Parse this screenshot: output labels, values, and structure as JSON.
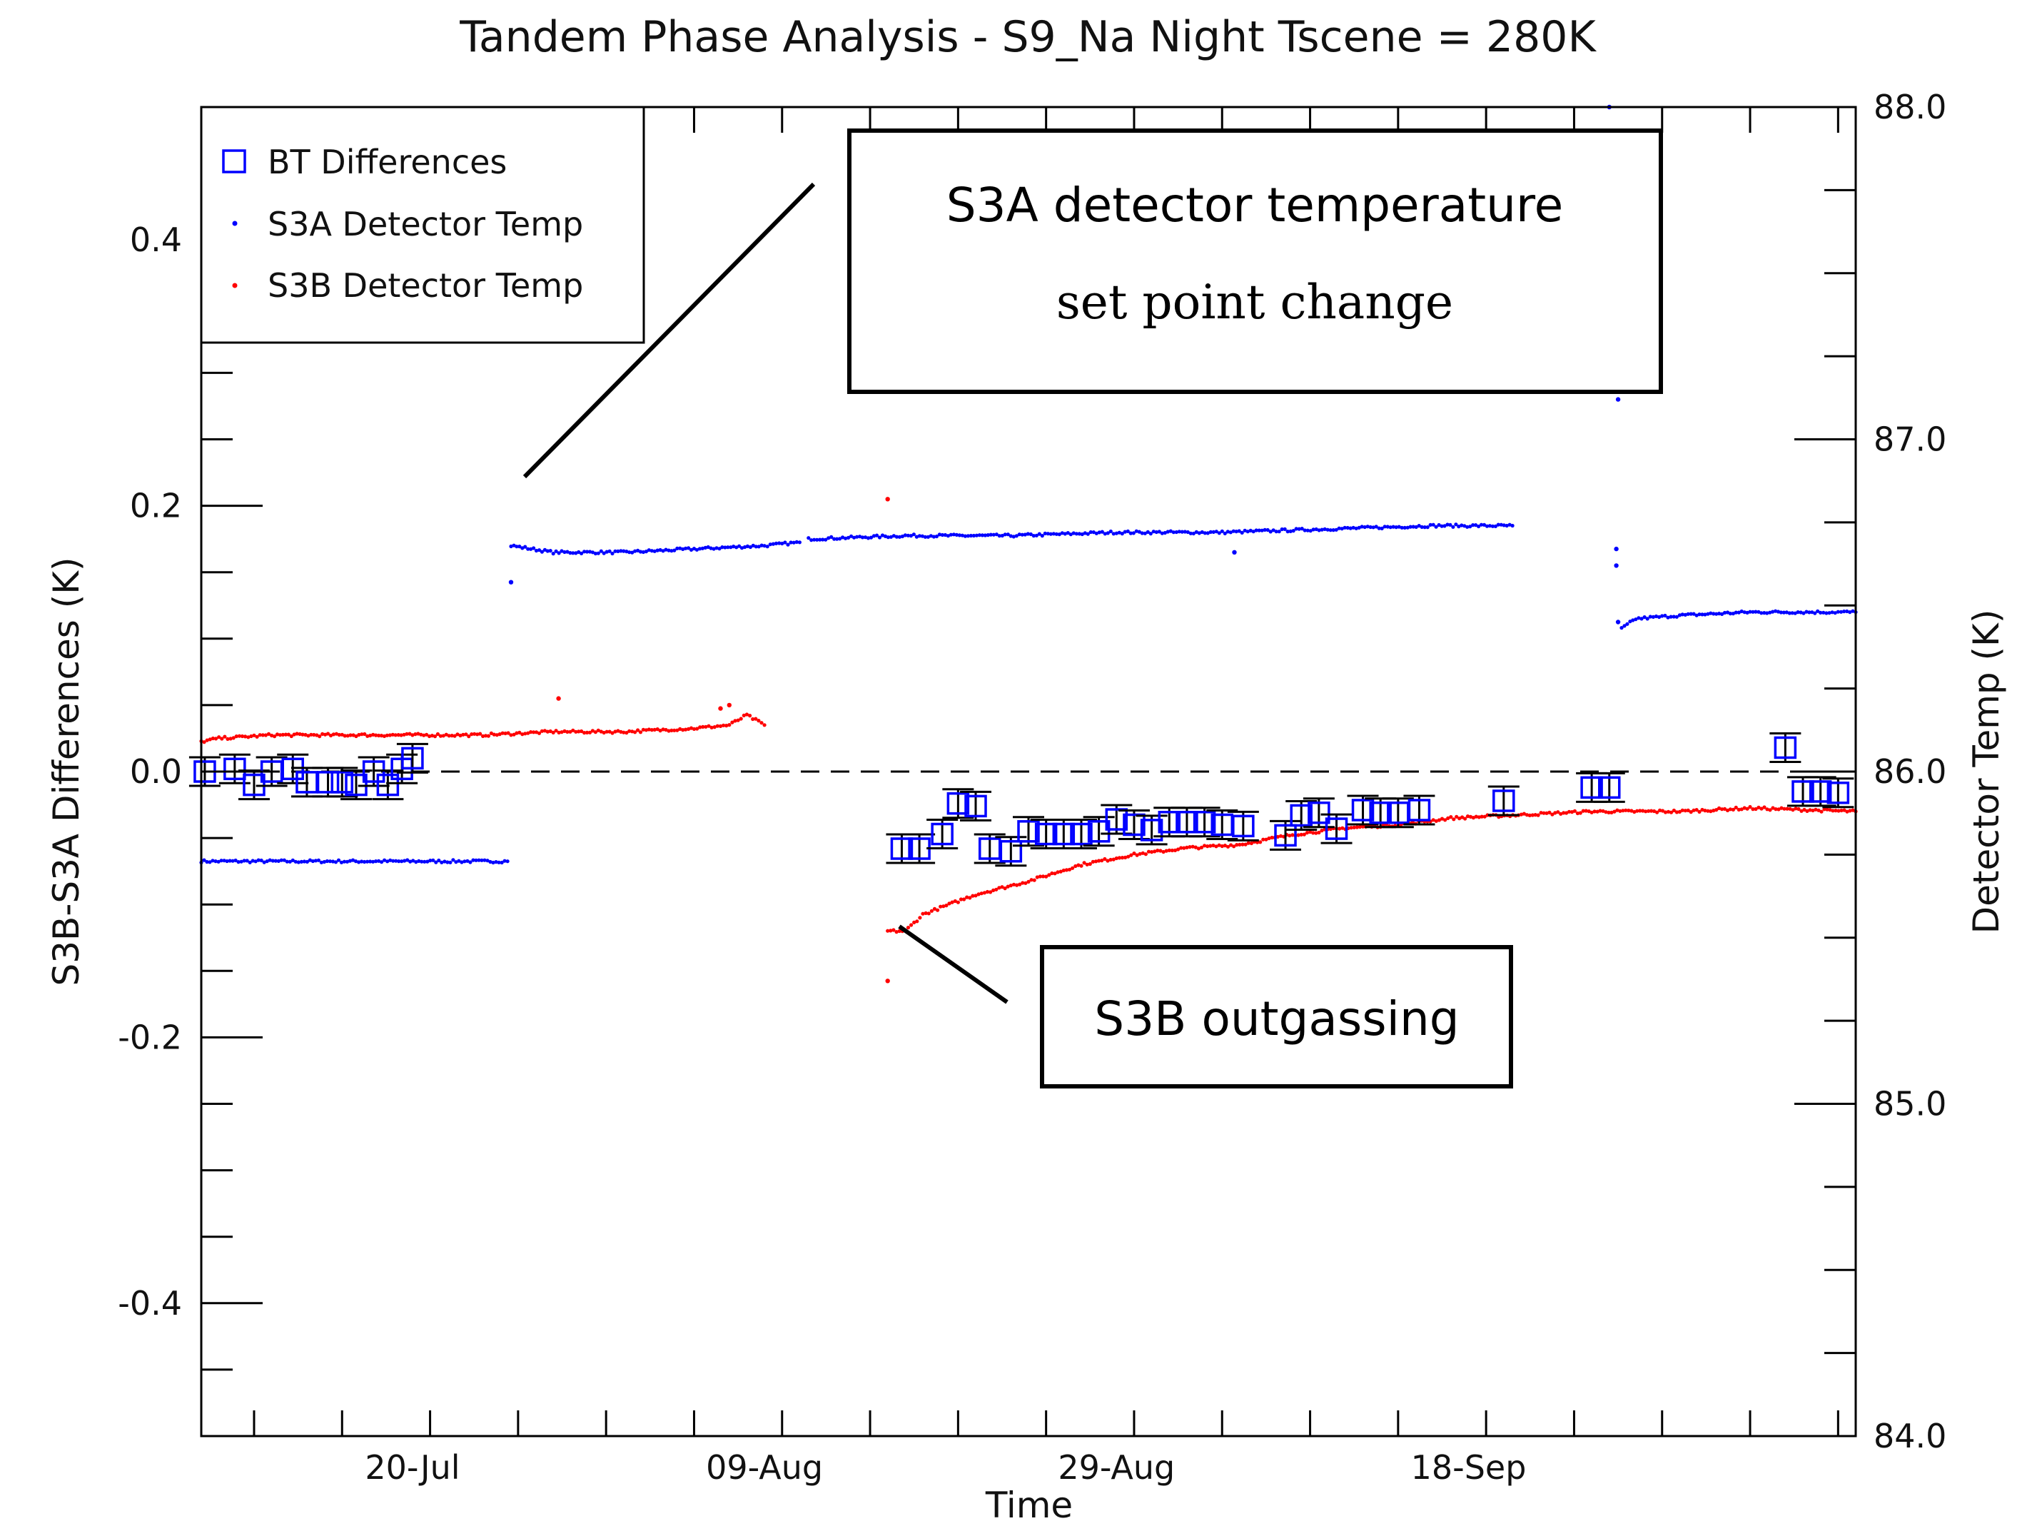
{
  "chart_data": {
    "type": "scatter",
    "title": "Tandem Phase Analysis - S9_Na Night Tscene = 280K",
    "xlabel": "Time",
    "ylabel_left": "S3B-S3A Differences (K)",
    "ylabel_right": "Detector Temp (K)",
    "xlim_days": [
      0,
      94
    ],
    "x_tick_labels": [
      "20-Jul",
      "09-Aug",
      "29-Aug",
      "18-Sep"
    ],
    "ylim_left": [
      -0.5,
      0.5
    ],
    "left_tick_labels": [
      "-0.4",
      "-0.2",
      "0.0",
      "0.2",
      "0.4"
    ],
    "ylim_right": [
      84.0,
      88.0
    ],
    "right_tick_labels": [
      "84.0",
      "85.0",
      "86.0",
      "87.0",
      "88.0"
    ],
    "reference_line": {
      "y": 0.0,
      "style": "dashed"
    },
    "legend_position": "top-left",
    "series": [
      {
        "name": "BT Differences",
        "marker": "open-square",
        "color": "#0000ff",
        "points": [
          [
            0.2,
            0.0
          ],
          [
            1.9,
            0.002
          ],
          [
            3.0,
            -0.01
          ],
          [
            4.0,
            0.0
          ],
          [
            5.2,
            0.002
          ],
          [
            6.0,
            -0.008
          ],
          [
            7.2,
            -0.008
          ],
          [
            8.0,
            -0.008
          ],
          [
            8.8,
            -0.01
          ],
          [
            9.8,
            0.0
          ],
          [
            10.6,
            -0.01
          ],
          [
            11.4,
            0.002
          ],
          [
            12.0,
            0.01
          ],
          [
            39.8,
            -0.058
          ],
          [
            40.8,
            -0.058
          ],
          [
            42.1,
            -0.047
          ],
          [
            43.0,
            -0.024
          ],
          [
            44.0,
            -0.026
          ],
          [
            44.8,
            -0.058
          ],
          [
            46.0,
            -0.06
          ],
          [
            47.0,
            -0.045
          ],
          [
            48.0,
            -0.047
          ],
          [
            49.0,
            -0.047
          ],
          [
            50.0,
            -0.047
          ],
          [
            51.0,
            -0.045
          ],
          [
            52.0,
            -0.036
          ],
          [
            53.0,
            -0.04
          ],
          [
            54.0,
            -0.044
          ],
          [
            55.0,
            -0.038
          ],
          [
            56.0,
            -0.038
          ],
          [
            57.0,
            -0.038
          ],
          [
            58.0,
            -0.04
          ],
          [
            59.2,
            -0.041
          ],
          [
            61.6,
            -0.048
          ],
          [
            62.5,
            -0.033
          ],
          [
            63.5,
            -0.031
          ],
          [
            64.5,
            -0.043
          ],
          [
            66.0,
            -0.029
          ],
          [
            67.0,
            -0.031
          ],
          [
            68.0,
            -0.031
          ],
          [
            69.2,
            -0.029
          ],
          [
            74.0,
            -0.022
          ],
          [
            79.0,
            -0.012
          ],
          [
            80.0,
            -0.012
          ],
          [
            90.0,
            0.018
          ],
          [
            91.0,
            -0.015
          ],
          [
            92.0,
            -0.015
          ],
          [
            93.0,
            -0.016
          ]
        ]
      },
      {
        "name": "S3A Detector Temp",
        "marker": "dot",
        "color": "#0000ff",
        "segments": [
          {
            "x": [
              0,
              17.4
            ],
            "y": [
              85.73,
              85.73
            ]
          },
          {
            "x": [
              17.6,
              20,
              24,
              28,
              32,
              34
            ],
            "y": [
              86.68,
              86.66,
              86.66,
              86.67,
              86.68,
              86.69
            ]
          },
          {
            "x": [
              34.5,
              40,
              46,
              52,
              58,
              64,
              70,
              74.5
            ],
            "y": [
              86.7,
              86.71,
              86.71,
              86.72,
              86.72,
              86.73,
              86.74,
              86.74
            ]
          },
          {
            "x": [
              80.7,
              81.5,
              84,
              88,
              92,
              94
            ],
            "y": [
              86.43,
              86.46,
              86.47,
              86.48,
              86.48,
              86.48
            ]
          }
        ],
        "outliers": [
          [
            17.6,
            86.57
          ],
          [
            58.7,
            86.66
          ],
          [
            80.4,
            86.67
          ],
          [
            80.4,
            86.62
          ],
          [
            80.5,
            86.45
          ],
          [
            80.0,
            88.0
          ],
          [
            80.5,
            87.12
          ]
        ]
      },
      {
        "name": "S3B Detector Temp",
        "marker": "dot",
        "color": "#ff0000",
        "segments": [
          {
            "x": [
              0,
              1,
              4,
              8,
              12,
              16,
              20,
              24,
              28,
              30,
              31,
              32
            ],
            "y": [
              86.09,
              86.1,
              86.11,
              86.11,
              86.11,
              86.11,
              86.12,
              86.12,
              86.13,
              86.14,
              86.17,
              86.14
            ]
          },
          {
            "x": [
              39,
              40,
              41,
              44,
              47,
              50,
              53,
              56,
              59,
              62,
              65,
              68,
              71,
              75,
              79,
              84,
              88,
              94
            ],
            "y": [
              85.52,
              85.52,
              85.57,
              85.63,
              85.67,
              85.72,
              85.75,
              85.77,
              85.78,
              85.81,
              85.83,
              85.84,
              85.86,
              85.87,
              85.88,
              85.88,
              85.89,
              85.88
            ]
          }
        ],
        "outliers": [
          [
            39.0,
            85.37
          ],
          [
            39.0,
            86.82
          ],
          [
            20.3,
            86.22
          ],
          [
            29.5,
            86.19
          ],
          [
            30.0,
            86.2
          ]
        ]
      }
    ],
    "annotations": [
      {
        "line1": "S3A detector temperature",
        "line2": "set point change"
      },
      {
        "text": "S3B outgassing"
      }
    ],
    "colors": {
      "blue": "#0000ff",
      "red": "#ff0000",
      "axis": "#000000"
    }
  }
}
